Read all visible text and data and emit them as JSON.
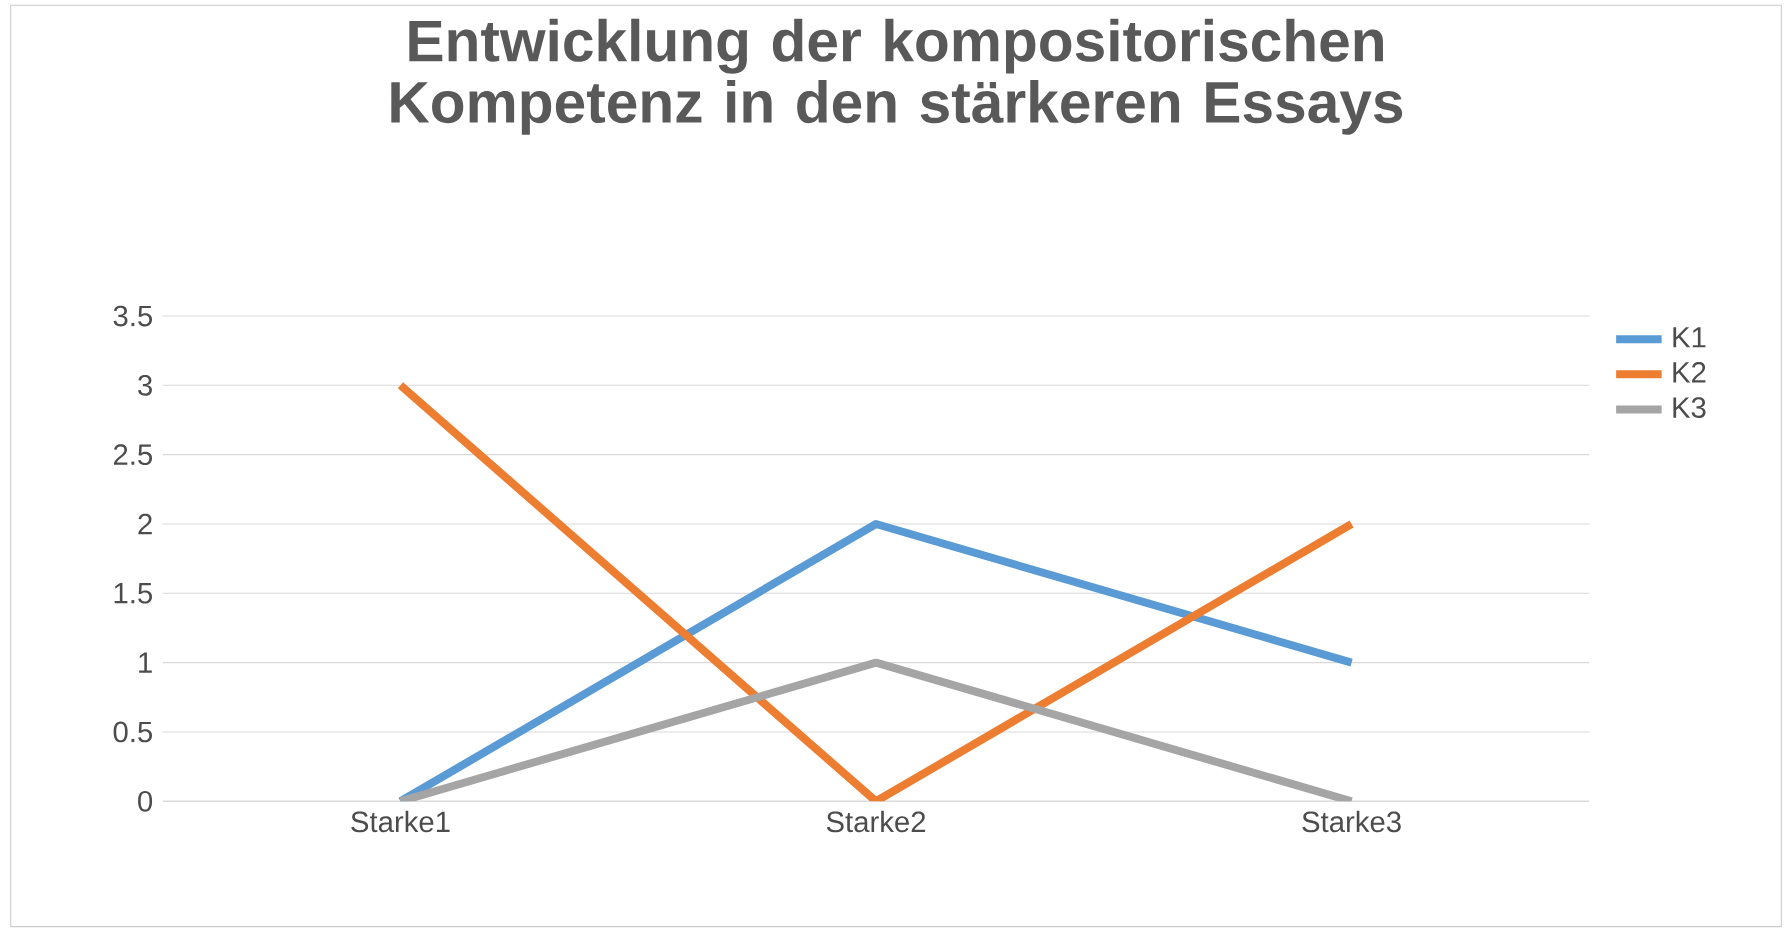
{
  "chart_data": {
    "type": "line",
    "title": "Entwicklung der kompositorischen Kompetenz in den stärkeren Essays",
    "categories": [
      "Starke1",
      "Starke2",
      "Starke3"
    ],
    "series": [
      {
        "name": "K1",
        "color": "#5b9bd5",
        "values": [
          0,
          2,
          1
        ]
      },
      {
        "name": "K2",
        "color": "#ed7d31",
        "values": [
          3,
          0,
          2
        ]
      },
      {
        "name": "K3",
        "color": "#a5a5a5",
        "values": [
          0,
          1,
          0
        ]
      }
    ],
    "ylim": [
      0,
      3.5
    ],
    "yticks": [
      0,
      0.5,
      1,
      1.5,
      2,
      2.5,
      3,
      3.5
    ],
    "grid": "y",
    "legend": "right"
  }
}
